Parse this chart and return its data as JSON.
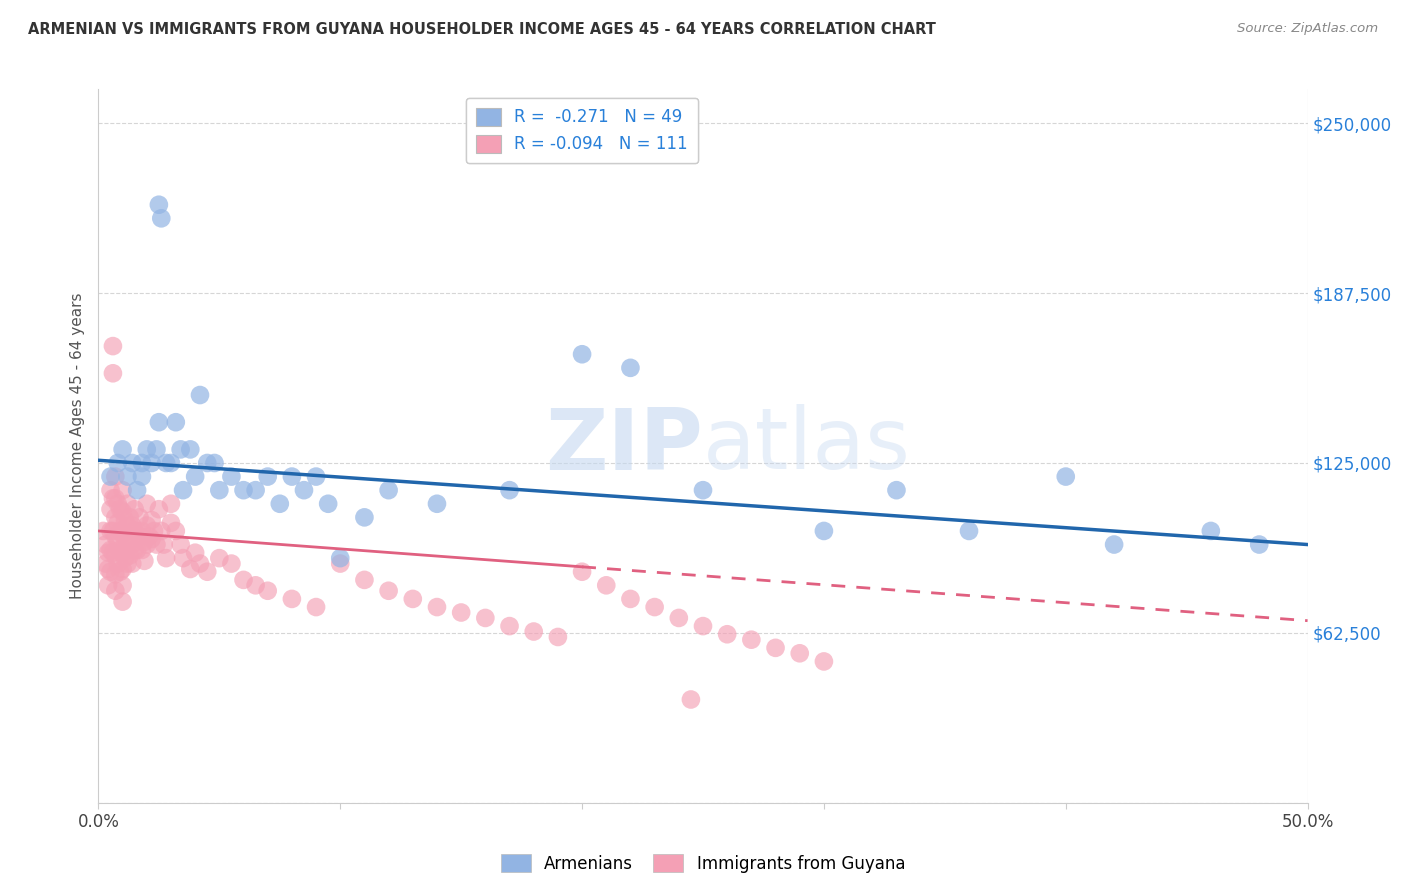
{
  "title": "ARMENIAN VS IMMIGRANTS FROM GUYANA HOUSEHOLDER INCOME AGES 45 - 64 YEARS CORRELATION CHART",
  "source": "Source: ZipAtlas.com",
  "ylabel": "Householder Income Ages 45 - 64 years",
  "y_ticks": [
    0,
    62500,
    125000,
    187500,
    250000
  ],
  "y_tick_labels": [
    "",
    "$62,500",
    "$125,000",
    "$187,500",
    "$250,000"
  ],
  "xlim": [
    0.0,
    0.5
  ],
  "ylim": [
    0,
    262500
  ],
  "legend_r1": "R =  -0.271   N = 49",
  "legend_r2": "R = -0.094   N = 111",
  "blue_color": "#92b4e3",
  "pink_color": "#f4a0b5",
  "blue_line_color": "#2166ac",
  "pink_line_color": "#e06080",
  "watermark_color": "#d8e8f5",
  "armenians_x": [
    0.005,
    0.008,
    0.01,
    0.012,
    0.014,
    0.016,
    0.018,
    0.018,
    0.02,
    0.022,
    0.024,
    0.025,
    0.025,
    0.026,
    0.028,
    0.03,
    0.032,
    0.034,
    0.035,
    0.038,
    0.04,
    0.042,
    0.045,
    0.048,
    0.05,
    0.055,
    0.06,
    0.065,
    0.07,
    0.075,
    0.08,
    0.085,
    0.09,
    0.095,
    0.1,
    0.11,
    0.12,
    0.14,
    0.17,
    0.2,
    0.22,
    0.25,
    0.3,
    0.33,
    0.36,
    0.4,
    0.42,
    0.46,
    0.48
  ],
  "armenians_y": [
    120000,
    125000,
    130000,
    120000,
    125000,
    115000,
    120000,
    125000,
    130000,
    125000,
    130000,
    140000,
    220000,
    215000,
    125000,
    125000,
    140000,
    130000,
    115000,
    130000,
    120000,
    150000,
    125000,
    125000,
    115000,
    120000,
    115000,
    115000,
    120000,
    110000,
    120000,
    115000,
    120000,
    110000,
    90000,
    105000,
    115000,
    110000,
    115000,
    165000,
    160000,
    115000,
    100000,
    115000,
    100000,
    120000,
    95000,
    100000,
    95000
  ],
  "guyana_x": [
    0.002,
    0.003,
    0.003,
    0.004,
    0.004,
    0.004,
    0.005,
    0.005,
    0.005,
    0.005,
    0.005,
    0.006,
    0.006,
    0.006,
    0.006,
    0.006,
    0.007,
    0.007,
    0.007,
    0.007,
    0.007,
    0.007,
    0.007,
    0.008,
    0.008,
    0.008,
    0.008,
    0.009,
    0.009,
    0.009,
    0.009,
    0.01,
    0.01,
    0.01,
    0.01,
    0.01,
    0.01,
    0.01,
    0.011,
    0.011,
    0.011,
    0.012,
    0.012,
    0.012,
    0.012,
    0.013,
    0.013,
    0.013,
    0.014,
    0.014,
    0.014,
    0.015,
    0.015,
    0.015,
    0.016,
    0.016,
    0.017,
    0.017,
    0.018,
    0.018,
    0.019,
    0.019,
    0.02,
    0.02,
    0.02,
    0.021,
    0.022,
    0.022,
    0.023,
    0.024,
    0.025,
    0.026,
    0.027,
    0.028,
    0.03,
    0.03,
    0.032,
    0.034,
    0.035,
    0.038,
    0.04,
    0.042,
    0.045,
    0.05,
    0.055,
    0.06,
    0.065,
    0.07,
    0.08,
    0.09,
    0.1,
    0.11,
    0.12,
    0.13,
    0.14,
    0.15,
    0.16,
    0.17,
    0.18,
    0.19,
    0.2,
    0.21,
    0.22,
    0.23,
    0.24,
    0.25,
    0.26,
    0.27,
    0.28,
    0.29,
    0.3
  ],
  "guyana_y": [
    100000,
    95000,
    88000,
    92000,
    86000,
    80000,
    115000,
    108000,
    100000,
    93000,
    85000,
    168000,
    158000,
    112000,
    100000,
    92000,
    120000,
    112000,
    105000,
    98000,
    91000,
    84000,
    78000,
    110000,
    103000,
    96000,
    88000,
    108000,
    100000,
    93000,
    85000,
    115000,
    107000,
    99000,
    92000,
    86000,
    80000,
    74000,
    104000,
    97000,
    90000,
    110000,
    102000,
    95000,
    88000,
    105000,
    98000,
    91000,
    102000,
    95000,
    88000,
    108000,
    100000,
    93000,
    100000,
    93000,
    105000,
    98000,
    100000,
    93000,
    96000,
    89000,
    110000,
    102000,
    95000,
    98000,
    104000,
    97000,
    100000,
    95000,
    108000,
    100000,
    95000,
    90000,
    110000,
    103000,
    100000,
    95000,
    90000,
    86000,
    92000,
    88000,
    85000,
    90000,
    88000,
    82000,
    80000,
    78000,
    75000,
    72000,
    88000,
    82000,
    78000,
    75000,
    72000,
    70000,
    68000,
    65000,
    63000,
    61000,
    85000,
    80000,
    75000,
    72000,
    68000,
    65000,
    62000,
    60000,
    57000,
    55000,
    52000
  ],
  "guyana_outlier_x": [
    0.245
  ],
  "guyana_outlier_y": [
    38000
  ],
  "blue_trend_x0": 0.0,
  "blue_trend_y0": 126000,
  "blue_trend_x1": 0.5,
  "blue_trend_y1": 95000,
  "pink_trend_x0": 0.0,
  "pink_trend_y0": 100000,
  "pink_trend_x1": 0.5,
  "pink_trend_y1": 67000
}
